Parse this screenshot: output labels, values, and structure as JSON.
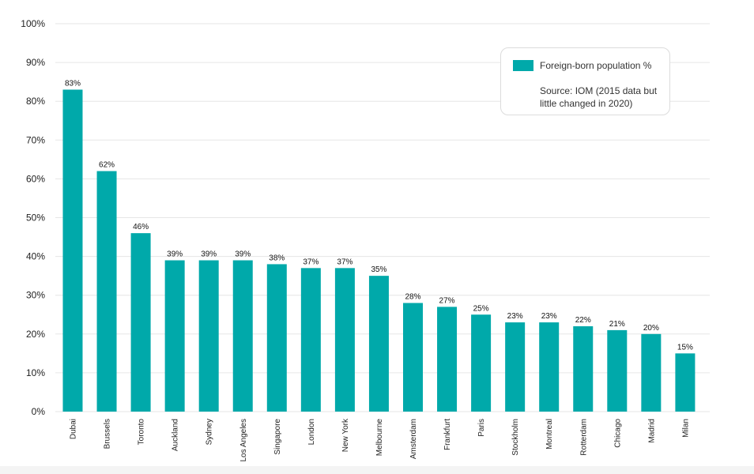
{
  "colors": {
    "bar": "#00A9AA",
    "grid": "#e6e6e6",
    "axis_text": "#222222",
    "label_text": "#111111"
  },
  "legend": {
    "series_label": "Foreign-born population %",
    "note": "Source: IOM (2015 data but little changed in 2020)"
  },
  "chart_data": {
    "type": "bar",
    "title": "",
    "xlabel": "",
    "ylabel": "",
    "ylim": [
      0,
      100
    ],
    "yticks": [
      "0%",
      "10%",
      "20%",
      "30%",
      "40%",
      "50%",
      "60%",
      "70%",
      "80%",
      "90%",
      "100%"
    ],
    "grid": true,
    "legend_position": "top-right",
    "categories": [
      "Dubai",
      "Brussels",
      "Toronto",
      "Auckland",
      "Sydney",
      "Los Angeles",
      "Singapore",
      "London",
      "New York",
      "Melbourne",
      "Amsterdam",
      "Frankfurt",
      "Paris",
      "Stockholm",
      "Montreal",
      "Rotterdam",
      "Chicago",
      "Madrid",
      "Milan"
    ],
    "series": [
      {
        "name": "Foreign-born population %",
        "values": [
          83,
          62,
          46,
          39,
          39,
          39,
          38,
          37,
          37,
          35,
          28,
          27,
          25,
          23,
          23,
          22,
          21,
          20,
          15
        ],
        "labels": [
          "83%",
          "62%",
          "46%",
          "39%",
          "39%",
          "39%",
          "38%",
          "37%",
          "37%",
          "35%",
          "28%",
          "27%",
          "25%",
          "23%",
          "23%",
          "22%",
          "21%",
          "20%",
          "15%"
        ]
      }
    ]
  }
}
